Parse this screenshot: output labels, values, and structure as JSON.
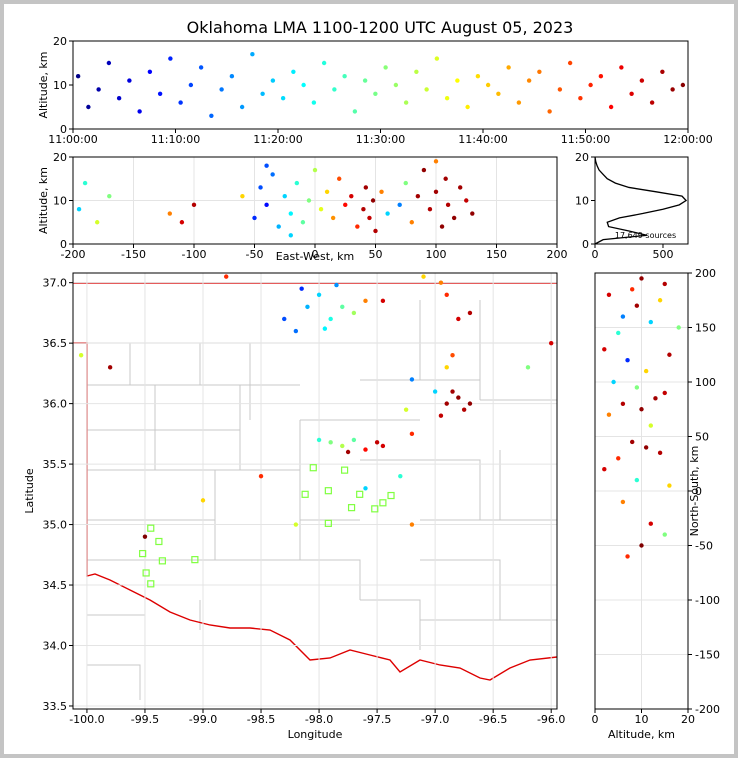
{
  "chart_data": [
    {
      "type": "scatter",
      "title": "Oklahoma LMA 1100-1200 UTC August 05, 2023",
      "ylabel": "Altitude, km",
      "colormap": "jet",
      "clim": [
        0,
        60
      ],
      "grid": false,
      "xlim": [
        0,
        60
      ],
      "ylim": [
        0,
        20
      ],
      "xticks": [
        {
          "value": 0,
          "label": "11:00:00"
        },
        {
          "value": 10,
          "label": "11:10:00"
        },
        {
          "value": 20,
          "label": "11:20:00"
        },
        {
          "value": 30,
          "label": "11:30:00"
        },
        {
          "value": 40,
          "label": "11:40:00"
        },
        {
          "value": 50,
          "label": "11:50:00"
        },
        {
          "value": 60,
          "label": "12:00:00"
        }
      ],
      "yticks": [
        0,
        10,
        20
      ],
      "x": [
        0.5,
        1.5,
        2.5,
        3.5,
        4.5,
        5.5,
        6.5,
        7.5,
        8.5,
        9.5,
        10.5,
        11.5,
        12.5,
        13.5,
        14.5,
        15.5,
        16.5,
        17.5,
        18.5,
        19.5,
        20.5,
        21.5,
        22.5,
        23.5,
        24.5,
        25.5,
        26.5,
        27.5,
        28.5,
        29.5,
        30.5,
        31.5,
        32.5,
        33.5,
        34.5,
        35.5,
        36.5,
        37.5,
        38.5,
        39.5,
        40.5,
        41.5,
        42.5,
        43.5,
        44.5,
        45.5,
        46.5,
        47.5,
        48.5,
        49.5,
        50.5,
        51.5,
        52.5,
        53.5,
        54.5,
        55.5,
        56.5,
        57.5,
        58.5,
        59.5
      ],
      "y": [
        12,
        5,
        9,
        15,
        7,
        11,
        4,
        13,
        8,
        16,
        6,
        10,
        14,
        3,
        9,
        12,
        5,
        17,
        8,
        11,
        7,
        13,
        10,
        6,
        15,
        9,
        12,
        4,
        11,
        8,
        14,
        10,
        6,
        13,
        9,
        16,
        7,
        11,
        5,
        12,
        10,
        8,
        14,
        6,
        11,
        13,
        4,
        9,
        15,
        7,
        10,
        12,
        5,
        14,
        8,
        11,
        6,
        13,
        9,
        10
      ],
      "c": [
        0.5,
        1.5,
        2.5,
        3.5,
        4.5,
        5.5,
        6.5,
        7.5,
        8.5,
        9.5,
        10.5,
        11.5,
        12.5,
        13.5,
        14.5,
        15.5,
        16.5,
        17.5,
        18.5,
        19.5,
        20.5,
        21.5,
        22.5,
        23.5,
        24.5,
        25.5,
        26.5,
        27.5,
        28.5,
        29.5,
        30.5,
        31.5,
        32.5,
        33.5,
        34.5,
        35.5,
        36.5,
        37.5,
        38.5,
        39.5,
        40.5,
        41.5,
        42.5,
        43.5,
        44.5,
        45.5,
        46.5,
        47.5,
        48.5,
        49.5,
        50.5,
        51.5,
        52.5,
        53.5,
        54.5,
        55.5,
        56.5,
        57.5,
        58.5,
        59.5
      ]
    },
    {
      "type": "scatter",
      "xlabel": "East-West, km",
      "ylabel": "Altitude, km",
      "colormap": "jet",
      "clim": [
        0,
        60
      ],
      "grid": true,
      "xlim": [
        -200,
        200
      ],
      "ylim": [
        0,
        20
      ],
      "xticks": [
        -200,
        -150,
        -100,
        -50,
        0,
        50,
        100,
        150,
        200
      ],
      "yticks": [
        0,
        10,
        20
      ],
      "x": [
        -195,
        -190,
        -180,
        -170,
        -120,
        -110,
        -100,
        -60,
        -50,
        -45,
        -40,
        -35,
        -30,
        -25,
        -20,
        -15,
        -10,
        -5,
        0,
        5,
        10,
        15,
        20,
        25,
        30,
        35,
        40,
        42,
        45,
        48,
        50,
        55,
        60,
        70,
        75,
        80,
        85,
        90,
        95,
        100,
        105,
        108,
        110,
        115,
        120,
        125,
        130,
        -40,
        -20,
        100
      ],
      "y": [
        8,
        14,
        5,
        11,
        7,
        5,
        9,
        11,
        6,
        13,
        9,
        16,
        4,
        11,
        7,
        14,
        5,
        10,
        17,
        8,
        12,
        6,
        15,
        9,
        11,
        4,
        8,
        13,
        6,
        10,
        3,
        12,
        7,
        9,
        14,
        5,
        11,
        17,
        8,
        12,
        4,
        15,
        9,
        6,
        13,
        10,
        7,
        18,
        2,
        19
      ],
      "c": [
        20,
        25,
        35,
        30,
        45,
        55,
        57,
        40,
        10,
        12,
        8,
        14,
        18,
        20,
        22,
        25,
        28,
        30,
        33,
        36,
        40,
        44,
        48,
        52,
        55,
        50,
        57,
        58,
        56,
        59,
        57,
        45,
        20,
        15,
        30,
        45,
        58,
        59,
        57,
        58,
        59,
        58,
        57,
        59,
        58,
        56,
        59,
        12,
        20,
        45
      ]
    },
    {
      "type": "line",
      "color": "#000000",
      "annotation": "17,649 sources",
      "xlim": [
        0,
        684
      ],
      "ylim": [
        0,
        20
      ],
      "xticks": [
        0,
        500
      ],
      "yticks": [
        0,
        10,
        20
      ],
      "x": [
        0,
        60,
        380,
        250,
        100,
        90,
        180,
        350,
        500,
        620,
        670,
        640,
        450,
        250,
        150,
        90,
        60,
        30,
        15,
        5,
        0
      ],
      "y": [
        0,
        1,
        2,
        3,
        4,
        5,
        6,
        7,
        8,
        9,
        10,
        11,
        12,
        13,
        14,
        15,
        16,
        17,
        18,
        19,
        20
      ]
    },
    {
      "type": "scatter",
      "xlabel": "Longitude",
      "ylabel": "Latitude",
      "colormap": "jet",
      "clim": [
        0,
        60
      ],
      "grid": true,
      "xlim": [
        -100.12,
        -95.95
      ],
      "ylim": [
        33.475,
        37.08
      ],
      "xticks": [
        {
          "value": -100,
          "label": "-100.0"
        },
        -99.5,
        {
          "value": -99,
          "label": "-99.0"
        },
        -98.5,
        {
          "value": -98,
          "label": "-98.0"
        },
        -97.5,
        {
          "value": -97,
          "label": "-97.0"
        },
        -96.5,
        {
          "value": -96,
          "label": "-96.0"
        }
      ],
      "yticks": [
        33.5,
        {
          "value": 34,
          "label": "34.0"
        },
        34.5,
        {
          "value": 35,
          "label": "35.0"
        },
        35.5,
        {
          "value": 36,
          "label": "36.0"
        },
        36.5,
        {
          "value": 37,
          "label": "37.0"
        }
      ],
      "x": [
        -98.3,
        -98.2,
        -98.1,
        -98.0,
        -97.9,
        -97.8,
        -97.7,
        -98.15,
        -97.95,
        -97.6,
        -97.45,
        -97.85,
        -96.9,
        -96.8,
        -96.75,
        -96.85,
        -96.95,
        -96.7,
        -97.0,
        -97.2,
        -97.25,
        -96.9,
        -96.85,
        -96.8,
        -96.7,
        -96.9,
        -96.95,
        -97.1,
        -98.0,
        -97.9,
        -97.8,
        -97.7,
        -97.6,
        -97.5,
        -97.45,
        -97.75,
        -97.2,
        -99.0,
        -98.5,
        -98.2,
        -97.6,
        -97.2,
        -99.5,
        -96.2,
        -96.0,
        -100.05,
        -99.8,
        -98.8,
        -97.3
      ],
      "y": [
        36.7,
        36.6,
        36.8,
        36.9,
        36.7,
        36.8,
        36.75,
        36.95,
        36.62,
        36.85,
        36.85,
        36.98,
        36.0,
        36.05,
        35.95,
        36.1,
        35.9,
        36.0,
        36.1,
        36.2,
        35.95,
        36.3,
        36.4,
        36.7,
        36.75,
        36.9,
        37.0,
        37.05,
        35.7,
        35.68,
        35.65,
        35.7,
        35.62,
        35.68,
        35.65,
        35.6,
        35.75,
        35.2,
        35.4,
        35.0,
        35.3,
        35.0,
        34.9,
        36.3,
        36.5,
        36.4,
        36.3,
        37.05,
        35.4
      ],
      "c": [
        12,
        14,
        18,
        20,
        24,
        28,
        32,
        10,
        22,
        45,
        55,
        16,
        58,
        59,
        57,
        58,
        56,
        59,
        20,
        15,
        35,
        40,
        48,
        55,
        57,
        50,
        45,
        40,
        25,
        30,
        33,
        28,
        52,
        56,
        55,
        58,
        50,
        40,
        50,
        35,
        20,
        45,
        60,
        30,
        55,
        35,
        58,
        50,
        25
      ],
      "stations": {
        "color": "#80ff40",
        "x": [
          -98.05,
          -97.78,
          -98.12,
          -97.92,
          -97.65,
          -97.45,
          -97.38,
          -97.72,
          -97.52,
          -97.92,
          -99.45,
          -99.38,
          -99.52,
          -99.35,
          -99.07,
          -99.49,
          -99.45
        ],
        "y": [
          35.47,
          35.45,
          35.25,
          35.28,
          35.25,
          35.18,
          35.24,
          35.14,
          35.13,
          35.01,
          34.97,
          34.86,
          34.76,
          34.7,
          34.71,
          34.6,
          34.51
        ]
      }
    },
    {
      "type": "scatter",
      "xlabel": "Altitude, km",
      "ylabel": "North-South, km",
      "colormap": "jet",
      "clim": [
        0,
        60
      ],
      "grid": true,
      "xlim": [
        0,
        20
      ],
      "ylim": [
        -200,
        200
      ],
      "xticks": [
        0,
        10,
        20
      ],
      "yticks": [
        -200,
        -150,
        -100,
        -50,
        0,
        50,
        100,
        150,
        200
      ],
      "x": [
        3,
        6,
        9,
        12,
        15,
        18,
        5,
        10,
        14,
        8,
        2,
        7,
        11,
        16,
        4,
        9,
        13,
        6,
        10,
        15,
        3,
        12,
        8,
        11,
        14,
        5,
        2,
        9,
        16,
        6,
        12,
        7,
        15,
        10
      ],
      "y": [
        180,
        160,
        170,
        155,
        190,
        150,
        145,
        195,
        175,
        185,
        130,
        120,
        110,
        125,
        100,
        95,
        85,
        80,
        75,
        90,
        70,
        60,
        45,
        40,
        35,
        30,
        20,
        10,
        5,
        -10,
        -30,
        -60,
        -40,
        -50
      ],
      "c": [
        55,
        15,
        58,
        20,
        57,
        30,
        25,
        59,
        40,
        50,
        55,
        10,
        40,
        57,
        20,
        30,
        58,
        57,
        59,
        56,
        45,
        35,
        58,
        59,
        57,
        50,
        55,
        25,
        40,
        45,
        55,
        50,
        30,
        60
      ]
    }
  ]
}
